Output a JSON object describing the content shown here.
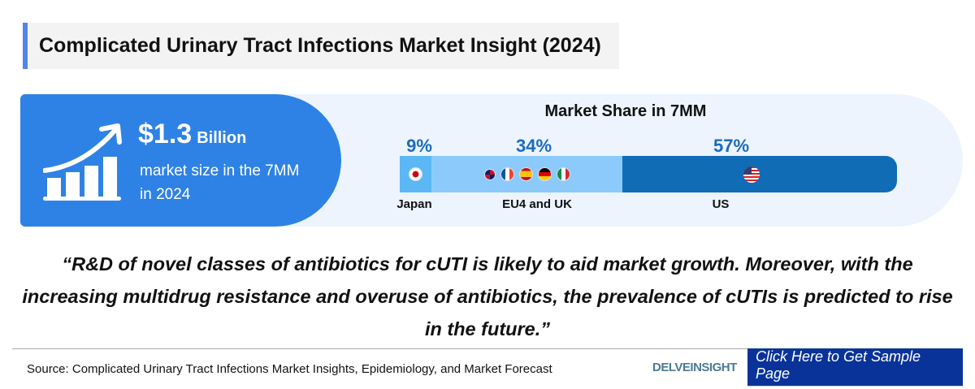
{
  "title": "Complicated Urinary Tract Infections Market Insight (2024)",
  "market_size": {
    "value": "$1.3",
    "unit": "Billion",
    "description": "market size in the 7MM in 2024",
    "icon": "growth-chart-icon"
  },
  "market_share": {
    "title": "Market Share in 7MM",
    "segments": [
      {
        "region": "Japan",
        "percent": "9%",
        "value": 9,
        "color": "#5bb8f5",
        "flags": [
          "japan"
        ]
      },
      {
        "region": "EU4 and UK",
        "percent": "34%",
        "value": 34,
        "color": "#8ccafc",
        "flags": [
          "uk",
          "france",
          "spain",
          "germany",
          "italy"
        ]
      },
      {
        "region": "US",
        "percent": "57%",
        "value": 57,
        "color": "#116cb6",
        "flags": [
          "usa"
        ]
      }
    ]
  },
  "quote": "“R&D of novel classes of antibiotics for cUTI is likely to aid market growth. Moreover, with the increasing multidrug resistance and overuse of antibiotics, the prevalence of cUTIs is predicted to rise in the future.”",
  "footer": {
    "source": "Source: Complicated Urinary Tract Infections Market Insights, Epidemiology, and Market Forecast",
    "logo": "DELVEINSIGHT",
    "cta": "Click Here to Get Sample Page"
  },
  "colors": {
    "accent": "#2f82e5",
    "cta": "#0a3399",
    "percent": "#1a6bbd"
  }
}
